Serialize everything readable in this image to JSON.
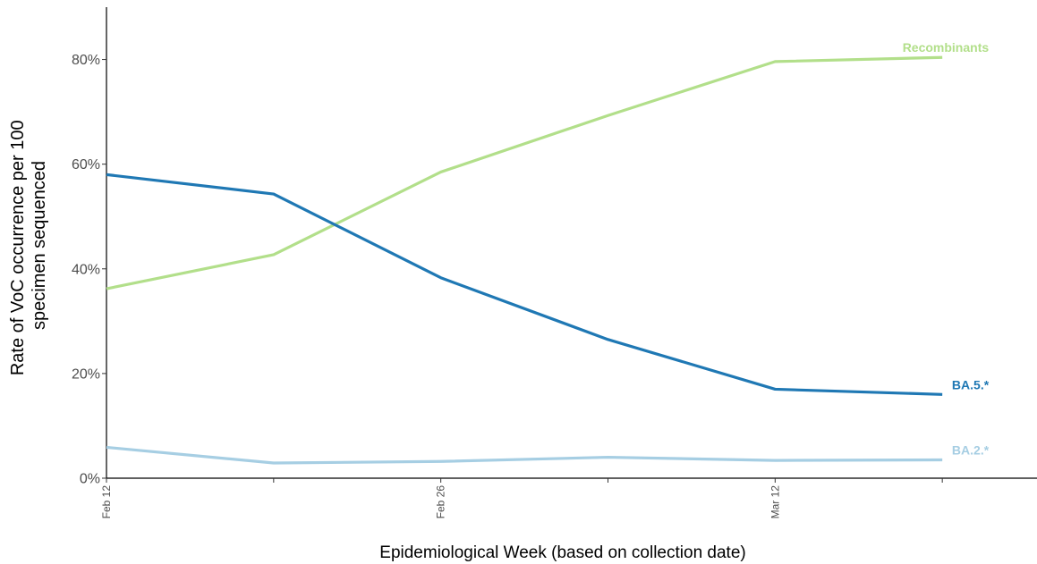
{
  "chart_data": {
    "type": "line",
    "xlabel": "Epidemiological Week (based on collection date)",
    "ylabel_lines": [
      "Rate of VoC occurrence per 100",
      "specimen sequenced"
    ],
    "x": [
      "2023-02-12",
      "2023-02-19",
      "2023-02-26",
      "2023-03-05",
      "2023-03-12",
      "2023-03-19"
    ],
    "x_tick_labels": [
      {
        "at": "2023-02-12",
        "label": "Feb 12"
      },
      {
        "at": "2023-02-26",
        "label": "Feb 26"
      },
      {
        "at": "2023-03-12",
        "label": "Mar 12"
      }
    ],
    "x_minor_ticks": [
      "2023-02-19",
      "2023-03-05",
      "2023-03-19"
    ],
    "ylim": [
      0,
      90
    ],
    "y_ticks": [
      0,
      20,
      40,
      60,
      80
    ],
    "y_tick_labels": [
      "0%",
      "20%",
      "40%",
      "60%",
      "80%"
    ],
    "grid": false,
    "legend": "none",
    "series": [
      {
        "name": "Recombinants",
        "color": "#b2df8a",
        "values": [
          36.2,
          42.7,
          58.5,
          69.3,
          79.6,
          80.4
        ]
      },
      {
        "name": "BA.5.*",
        "color": "#1f78b4",
        "values": [
          58.0,
          54.3,
          38.3,
          26.5,
          17.0,
          16.0
        ]
      },
      {
        "name": "BA.2.*",
        "color": "#a6cee3",
        "values": [
          5.9,
          2.9,
          3.2,
          4.0,
          3.4,
          3.5
        ]
      }
    ]
  }
}
